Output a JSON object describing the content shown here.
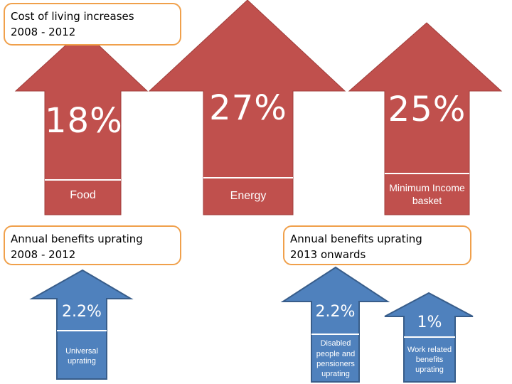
{
  "colors": {
    "red": "#c0504d",
    "blue": "#4f81bd",
    "callout_border": "#f0a04b"
  },
  "top_callout": {
    "line1": "Cost of living increases",
    "line2": "2008 - 2012"
  },
  "cost_arrows": [
    {
      "percent": "18%",
      "label": "Food"
    },
    {
      "percent": "27%",
      "label": "Energy"
    },
    {
      "percent": "25%",
      "label": "Minimum Income basket"
    }
  ],
  "left_callout": {
    "line1": "Annual benefits uprating",
    "line2": "2008 - 2012"
  },
  "right_callout": {
    "line1": "Annual benefits uprating",
    "line2": "2013 onwards"
  },
  "benefit_arrows": [
    {
      "percent": "2.2%",
      "label": "Universal uprating"
    },
    {
      "percent": "2.2%",
      "label": "Disabled people and pensioners uprating"
    },
    {
      "percent": "1%",
      "label": "Work related benefits uprating"
    }
  ]
}
